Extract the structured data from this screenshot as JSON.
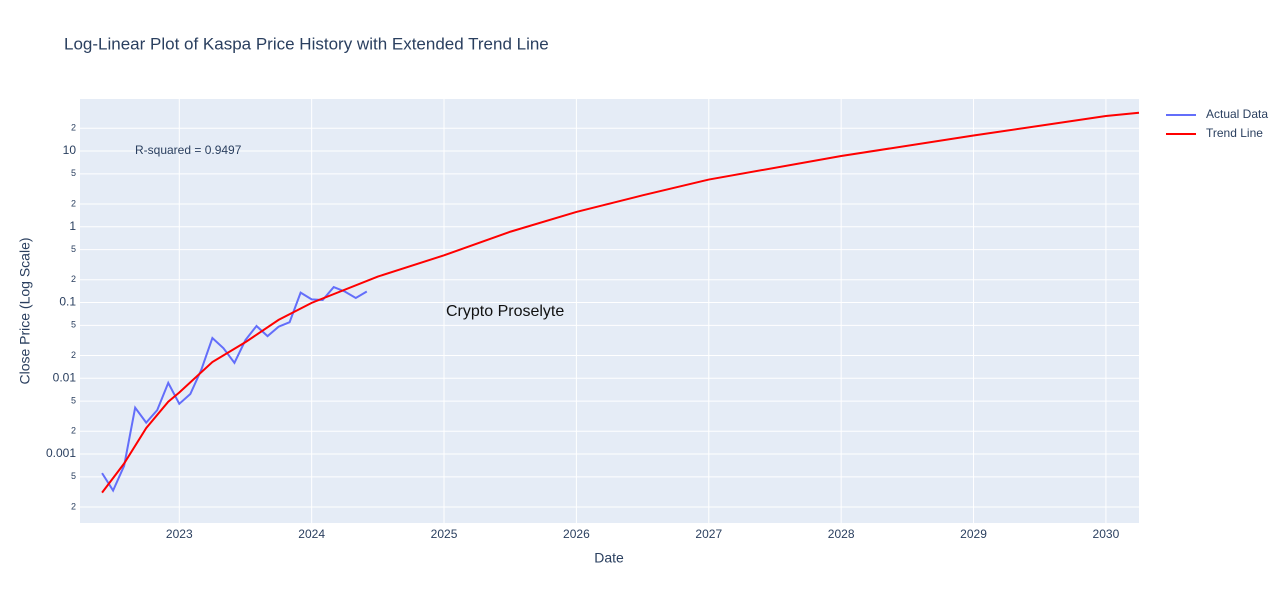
{
  "chart_data": {
    "type": "line",
    "title": "Log-Linear Plot of Kaspa Price History with Extended Trend Line",
    "x_label": "Date",
    "y_label": "Close Price (Log Scale)",
    "annotations": [
      "R-squared = 0.9497",
      "Crypto Proselyte"
    ],
    "log_y": true,
    "grid": true,
    "legend": "top-right",
    "xlim": [
      "2022-04",
      "2030-04"
    ],
    "xticks": [
      "2023",
      "2024",
      "2025",
      "2026",
      "2027",
      "2028",
      "2029",
      "2030"
    ],
    "ylim": [
      0.000123,
      48.6
    ],
    "yticks": [
      {
        "value": 0.0002,
        "label": "2"
      },
      {
        "value": 0.0005,
        "label": "5"
      },
      0.001,
      {
        "value": 0.002,
        "label": "2"
      },
      {
        "value": 0.005,
        "label": "5"
      },
      0.01,
      {
        "value": 0.02,
        "label": "2"
      },
      {
        "value": 0.05,
        "label": "5"
      },
      0.1,
      {
        "value": 0.2,
        "label": "2"
      },
      {
        "value": 0.5,
        "label": "5"
      },
      1,
      {
        "value": 2,
        "label": "2"
      },
      {
        "value": 5,
        "label": "5"
      },
      10,
      {
        "value": 20,
        "label": "2"
      }
    ],
    "series": [
      {
        "name": "Actual Data",
        "color": "#636efa",
        "x": [
          "2022-06",
          "2022-07",
          "2022-08",
          "2022-09",
          "2022-10",
          "2022-11",
          "2022-12",
          "2023-01",
          "2023-02",
          "2023-03",
          "2023-04",
          "2023-05",
          "2023-06",
          "2023-07",
          "2023-08",
          "2023-09",
          "2023-10",
          "2023-11",
          "2023-12",
          "2024-01",
          "2024-02",
          "2024-03",
          "2024-04",
          "2024-05",
          "2024-06"
        ],
        "values": [
          0.00056,
          0.00033,
          0.0007,
          0.0041,
          0.0026,
          0.0038,
          0.0087,
          0.0046,
          0.0062,
          0.013,
          0.034,
          0.025,
          0.016,
          0.032,
          0.049,
          0.036,
          0.048,
          0.055,
          0.135,
          0.11,
          0.108,
          0.16,
          0.14,
          0.115,
          0.14
        ]
      },
      {
        "name": "Trend Line",
        "color": "#ff0000",
        "x": [
          "2022-06",
          "2022-08",
          "2022-10",
          "2022-12",
          "2023-01",
          "2023-04",
          "2023-07",
          "2023-10",
          "2024-01",
          "2024-07",
          "2025-01",
          "2025-07",
          "2026-01",
          "2026-07",
          "2027-01",
          "2028-01",
          "2029-01",
          "2030-01",
          "2030-04"
        ],
        "values": [
          0.00031,
          0.00075,
          0.0022,
          0.0049,
          0.0065,
          0.0164,
          0.03,
          0.059,
          0.099,
          0.22,
          0.42,
          0.86,
          1.57,
          2.6,
          4.2,
          8.6,
          16,
          29,
          32
        ]
      }
    ]
  }
}
